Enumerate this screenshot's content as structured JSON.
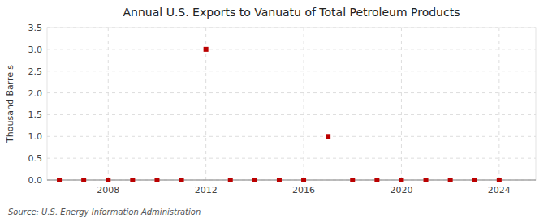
{
  "chart_data": {
    "type": "scatter",
    "title": "Annual U.S. Exports to Vanuatu of Total Petroleum Products",
    "y_label": "Thousand Barrels",
    "annotations": [
      "Source: U.S. Energy Information Administration"
    ],
    "x": [
      2006,
      2007,
      2008,
      2009,
      2010,
      2011,
      2012,
      2013,
      2014,
      2015,
      2016,
      2017,
      2018,
      2019,
      2020,
      2021,
      2022,
      2023,
      2024
    ],
    "values": [
      0.0,
      0.0,
      0.0,
      0.0,
      0.0,
      0.0,
      3.0,
      0.0,
      0.0,
      0.0,
      0.0,
      1.0,
      0.0,
      0.0,
      0.0,
      0.0,
      0.0,
      0.0,
      0.0
    ],
    "color": "#bb0000",
    "marker": "square",
    "xlim": [
      2005.5,
      2025.5
    ],
    "xticks": [
      2008,
      2012,
      2016,
      2020,
      2024
    ],
    "ylim": [
      0,
      3.5
    ],
    "yticks": [
      {
        "value": 0.0,
        "label": "0.0"
      },
      0.5,
      {
        "value": 1.0,
        "label": "1.0"
      },
      1.5,
      {
        "value": 2.0,
        "label": "2.0"
      },
      2.5,
      {
        "value": 3.0,
        "label": "3.0"
      },
      3.5
    ],
    "grid": true
  }
}
